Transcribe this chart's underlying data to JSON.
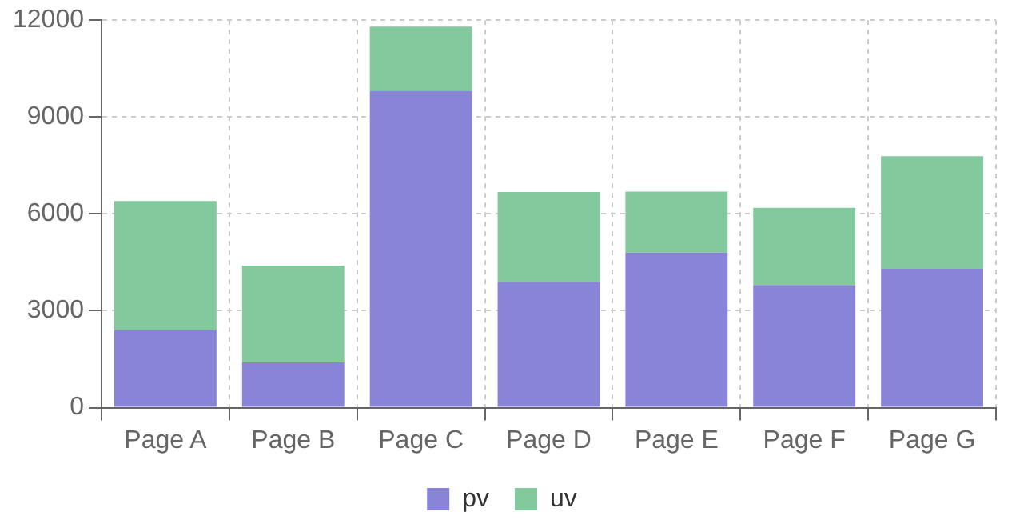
{
  "chart_data": {
    "type": "bar",
    "stacked": true,
    "categories": [
      "Page A",
      "Page B",
      "Page C",
      "Page D",
      "Page E",
      "Page F",
      "Page G"
    ],
    "series": [
      {
        "name": "pv",
        "color": "#8884d8",
        "values": [
          2400,
          1400,
          9800,
          3900,
          4800,
          3800,
          4300
        ]
      },
      {
        "name": "uv",
        "color": "#82ca9d",
        "values": [
          4000,
          3000,
          2000,
          2780,
          1890,
          2390,
          3490
        ]
      }
    ],
    "ylim": [
      0,
      12000
    ],
    "yticks": [
      0,
      3000,
      6000,
      9000,
      12000
    ],
    "grid": true,
    "legend": "bottom"
  }
}
